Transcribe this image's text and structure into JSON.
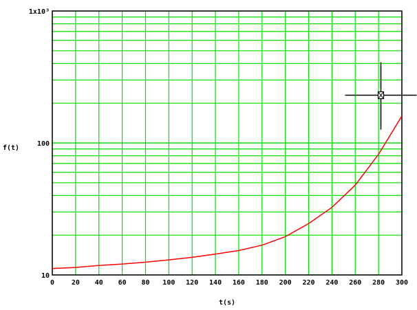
{
  "chart_data": {
    "type": "line",
    "title": "",
    "xlabel": "t(s)",
    "ylabel": "f(t)",
    "xlim": [
      0,
      300
    ],
    "ylim": [
      10,
      1000
    ],
    "yscale": "log",
    "grid": true,
    "x_ticks": [
      0,
      20,
      40,
      60,
      80,
      100,
      120,
      140,
      160,
      180,
      200,
      220,
      240,
      260,
      280,
      300
    ],
    "x_tick_labels": [
      "0",
      "20",
      "40",
      "60",
      "80",
      "100",
      "120",
      "140",
      "160",
      "180",
      "200",
      "220",
      "240",
      "260",
      "280",
      "300"
    ],
    "y_ticks": [
      10,
      100,
      1000
    ],
    "y_tick_labels": [
      "10",
      "100",
      "1x10³"
    ],
    "series": [
      {
        "color": "#ff0000",
        "x": [
          0,
          20,
          40,
          60,
          80,
          100,
          120,
          140,
          160,
          180,
          200,
          220,
          240,
          260,
          280,
          300
        ],
        "y": [
          11.2,
          11.4,
          11.8,
          12.1,
          12.5,
          13.0,
          13.6,
          14.4,
          15.3,
          16.8,
          19.5,
          24.5,
          32.5,
          48,
          82,
          160
        ]
      }
    ],
    "cursor": {
      "x": 282,
      "y": 230
    },
    "colors": {
      "grid": "#00e000",
      "series": "#ff0000",
      "axis": "#000000",
      "cursor": "#000000"
    }
  }
}
